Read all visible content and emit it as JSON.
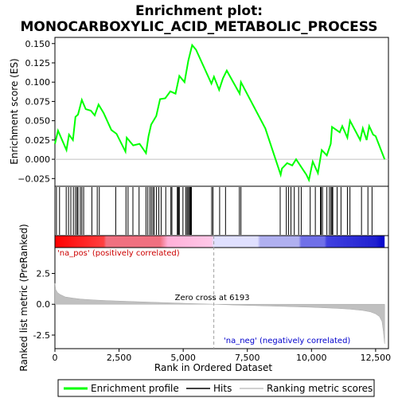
{
  "chart_data": {
    "type": "line",
    "title_line1": "Enrichment plot:",
    "title_line2": "MONOCARBOXYLIC_ACID_METABOLIC_PROCESS",
    "top_panel": {
      "ylabel": "Enrichment score (ES)",
      "ylim": [
        -0.035,
        0.158
      ],
      "yticks": [
        -0.025,
        0.0,
        0.025,
        0.05,
        0.075,
        0.1,
        0.125,
        0.15
      ],
      "ytick_labels": [
        "−0.025",
        "0.000",
        "0.025",
        "0.050",
        "0.075",
        "0.100",
        "0.125",
        "0.150"
      ],
      "series": {
        "name": "Enrichment profile",
        "color": "#00ff00",
        "x": [
          0,
          120,
          450,
          550,
          700,
          800,
          900,
          1050,
          1200,
          1400,
          1550,
          1700,
          1900,
          2200,
          2400,
          2750,
          2800,
          3050,
          3300,
          3550,
          3650,
          3750,
          3950,
          4100,
          4300,
          4500,
          4700,
          4850,
          5050,
          5200,
          5350,
          5500,
          6100,
          6200,
          6400,
          6550,
          6700,
          7200,
          7250,
          8200,
          8800,
          8850,
          9050,
          9250,
          9400,
          9800,
          9900,
          10050,
          10250,
          10400,
          10600,
          10750,
          10800,
          11100,
          11200,
          11400,
          11500,
          11900,
          12000,
          12150,
          12250,
          12400,
          12500,
          12850
        ],
        "y": [
          0.02,
          0.037,
          0.012,
          0.032,
          0.025,
          0.055,
          0.058,
          0.077,
          0.065,
          0.063,
          0.057,
          0.071,
          0.06,
          0.038,
          0.033,
          0.01,
          0.028,
          0.018,
          0.02,
          0.008,
          0.03,
          0.045,
          0.056,
          0.078,
          0.079,
          0.088,
          0.085,
          0.108,
          0.1,
          0.128,
          0.148,
          0.142,
          0.098,
          0.107,
          0.09,
          0.105,
          0.115,
          0.085,
          0.1,
          0.04,
          -0.02,
          -0.012,
          -0.005,
          -0.008,
          0.0,
          -0.02,
          -0.027,
          -0.003,
          -0.018,
          0.012,
          0.005,
          0.02,
          0.042,
          0.035,
          0.043,
          0.028,
          0.05,
          0.025,
          0.04,
          0.025,
          0.043,
          0.032,
          0.03,
          0.0
        ]
      }
    },
    "hits": [
      60,
      180,
      440,
      530,
      620,
      720,
      800,
      860,
      900,
      990,
      1050,
      1120,
      1440,
      1650,
      1730,
      2370,
      2770,
      2850,
      3040,
      3280,
      3550,
      3620,
      3700,
      3760,
      3820,
      3870,
      3960,
      4050,
      4140,
      4320,
      4520,
      4560,
      4770,
      4800,
      4820,
      4850,
      4990,
      5100,
      5150,
      5190,
      5240,
      5260,
      5290,
      5320,
      6110,
      6160,
      6420,
      6650,
      7190,
      7250,
      8780,
      9020,
      9110,
      9200,
      9330,
      9500,
      9600,
      9950,
      10150,
      10350,
      10380,
      10430,
      10600,
      10700,
      10760,
      10800,
      10830,
      11000,
      11150,
      11400,
      11500,
      11950,
      12200,
      12360
    ],
    "heatmap_bar": {
      "stops": [
        {
          "x": 0,
          "color": "#ff0000"
        },
        {
          "x": 1900,
          "color": "#ff4040"
        },
        {
          "x": 2000,
          "color": "#f07080"
        },
        {
          "x": 4100,
          "color": "#f07080"
        },
        {
          "x": 4400,
          "color": "#ffb0d8"
        },
        {
          "x": 6100,
          "color": "#ffc8e8"
        },
        {
          "x": 6200,
          "color": "#e0e0ff"
        },
        {
          "x": 7900,
          "color": "#e0e0ff"
        },
        {
          "x": 8000,
          "color": "#b0b0f0"
        },
        {
          "x": 9500,
          "color": "#b0b0f0"
        },
        {
          "x": 9600,
          "color": "#7070e8"
        },
        {
          "x": 10500,
          "color": "#7070e8"
        },
        {
          "x": 10600,
          "color": "#4040e0"
        },
        {
          "x": 12500,
          "color": "#2020d0"
        },
        {
          "x": 12850,
          "color": "#0000cc"
        }
      ]
    },
    "bottom_panel": {
      "ylabel": "Ranked list metric (PreRanked)",
      "xlabel": "Rank in Ordered Dataset",
      "xlim": [
        0,
        13000
      ],
      "xticks": [
        0,
        2500,
        5000,
        7500,
        10000,
        12500
      ],
      "xtick_labels": [
        "0",
        "2,500",
        "5,000",
        "7,500",
        "10,000",
        "12,500"
      ],
      "ylim": [
        -3.6,
        4.6
      ],
      "yticks": [
        -2.5,
        0.0,
        2.5
      ],
      "ytick_labels": [
        "-2.5",
        "0.0",
        "2.5"
      ],
      "fill_color": "#c0c0c0",
      "metric_x": [
        0,
        30,
        100,
        200,
        400,
        700,
        1000,
        1500,
        2000,
        3000,
        4000,
        5000,
        6193,
        7000,
        8000,
        9000,
        10000,
        11000,
        11500,
        12000,
        12300,
        12500,
        12650,
        12750,
        12800,
        12850
      ],
      "metric_y": [
        1.7,
        1.2,
        0.95,
        0.8,
        0.6,
        0.5,
        0.42,
        0.35,
        0.3,
        0.22,
        0.15,
        0.08,
        0.0,
        -0.06,
        -0.12,
        -0.18,
        -0.24,
        -0.33,
        -0.4,
        -0.5,
        -0.62,
        -0.78,
        -1.0,
        -1.4,
        -2.2,
        -3.2
      ],
      "zero_cross_x": 6193,
      "zero_cross_label": "Zero cross at 6193",
      "pos_label": "'na_pos' (positively correlated)",
      "neg_label": "'na_neg' (negatively correlated)",
      "pos_color": "#cc0000",
      "neg_color": "#0000cc"
    },
    "legend": {
      "items": [
        {
          "label": "Enrichment profile",
          "color": "#00ff00",
          "kind": "line"
        },
        {
          "label": "Hits",
          "color": "#000000",
          "kind": "line"
        },
        {
          "label": "Ranking metric scores",
          "color": "#c0c0c0",
          "kind": "line"
        }
      ]
    }
  }
}
